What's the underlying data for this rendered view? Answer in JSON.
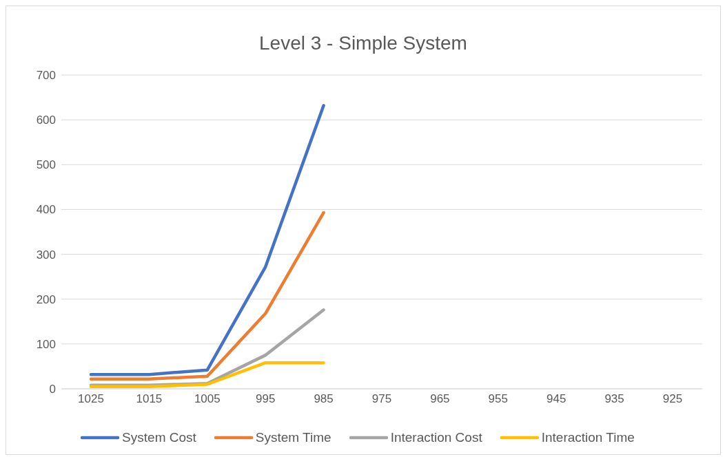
{
  "chart_data": {
    "type": "line",
    "title": "Level 3 - Simple System",
    "categories": [
      "1025",
      "1015",
      "1005",
      "995",
      "985",
      "975",
      "965",
      "955",
      "945",
      "935",
      "925"
    ],
    "series": [
      {
        "name": "System Cost",
        "color": "#4472c4",
        "values": [
          32,
          32,
          42,
          272,
          632,
          null,
          null,
          null,
          null,
          null,
          null
        ]
      },
      {
        "name": "System Time",
        "color": "#ed7d31",
        "values": [
          22,
          22,
          28,
          168,
          393,
          null,
          null,
          null,
          null,
          null,
          null
        ]
      },
      {
        "name": "Interaction Cost",
        "color": "#a5a5a5",
        "values": [
          8,
          8,
          12,
          75,
          176,
          null,
          null,
          null,
          null,
          null,
          null
        ]
      },
      {
        "name": "Interaction Time",
        "color": "#ffc000",
        "values": [
          5,
          5,
          10,
          58,
          58,
          null,
          null,
          null,
          null,
          null,
          null
        ]
      }
    ],
    "ylim": [
      0,
      700
    ],
    "yticks": [
      0,
      100,
      200,
      300,
      400,
      500,
      600,
      700
    ],
    "grid": "y",
    "legend": "bottom",
    "marker": "none",
    "line_style": "solid"
  }
}
